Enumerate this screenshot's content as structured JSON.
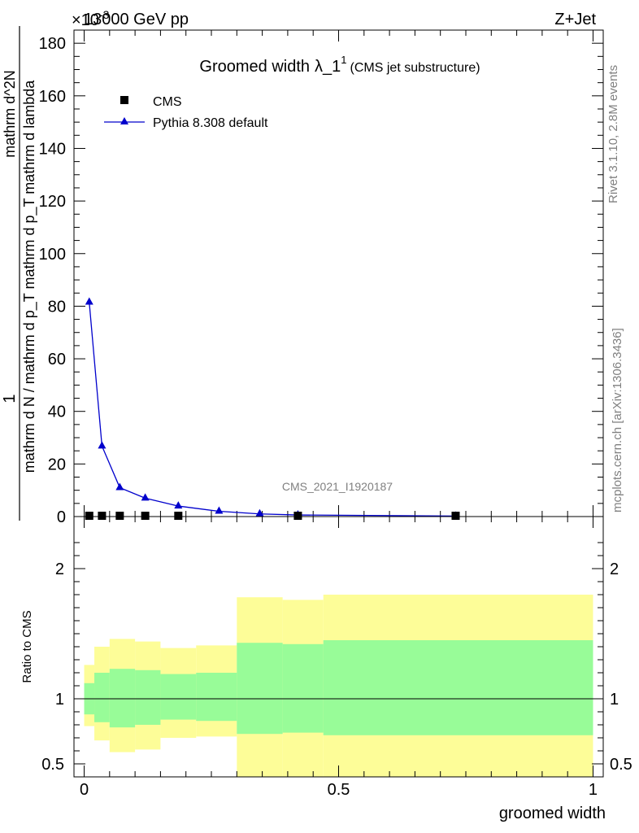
{
  "header": {
    "energy": "13000 GeV pp",
    "process": "Z+Jet",
    "exponent": "×10",
    "exponent_power": "-3"
  },
  "side_text": {
    "rivet": "Rivet 3.1.10,  2.8M events",
    "mcplots": "mcplots.cern.ch [arXiv:1306.3436]"
  },
  "watermark": "CMS_2021_I1920187",
  "chart_data": [
    {
      "type": "line",
      "title": "Groomed width",
      "title_symbol": "λ_1",
      "title_superscript": "1",
      "title_note": "(CMS jet substructure)",
      "ylabel_numerator": "1",
      "ylabel_denominator": "mathrm d N / mathrm d p_T mathrm d p_T mathrm d lambda",
      "ylabel_rotated": "mathrm d^2N",
      "xlim": [
        -0.02,
        1.02
      ],
      "ylim": [
        0,
        185
      ],
      "yticks": [
        "0",
        "20",
        "40",
        "60",
        "80",
        "100",
        "120",
        "140",
        "160",
        "180"
      ],
      "legend_position": "top-left",
      "series": [
        {
          "name": "CMS",
          "marker": "square",
          "color": "#000000",
          "points": [
            {
              "x": 0.01,
              "y": 0.3
            },
            {
              "x": 0.035,
              "y": 0.3
            },
            {
              "x": 0.07,
              "y": 0.3
            },
            {
              "x": 0.12,
              "y": 0.3
            },
            {
              "x": 0.185,
              "y": 0.3
            },
            {
              "x": 0.42,
              "y": 0.3
            },
            {
              "x": 0.73,
              "y": 0.3
            }
          ]
        },
        {
          "name": "Pythia 8.308 default",
          "marker": "triangle",
          "color": "#0000cc",
          "points": [
            {
              "x": 0.01,
              "y": 81.5
            },
            {
              "x": 0.035,
              "y": 26.8
            },
            {
              "x": 0.07,
              "y": 11.0
            },
            {
              "x": 0.12,
              "y": 7.0
            },
            {
              "x": 0.185,
              "y": 4.0
            },
            {
              "x": 0.265,
              "y": 2.0
            },
            {
              "x": 0.345,
              "y": 1.0
            },
            {
              "x": 0.42,
              "y": 0.6
            },
            {
              "x": 0.73,
              "y": 0.2
            }
          ]
        }
      ]
    },
    {
      "type": "area",
      "ylabel": "Ratio to CMS",
      "xlabel": "groomed width",
      "xlim": [
        -0.02,
        1.02
      ],
      "ylim": [
        0.4,
        2.4
      ],
      "xticks": [
        "0",
        "0.5",
        "1"
      ],
      "yticks": [
        "0.5",
        "1",
        "2"
      ],
      "reference_line": 1,
      "bins": [
        0,
        0.02,
        0.05,
        0.1,
        0.15,
        0.22,
        0.3,
        0.39,
        0.47,
        1.0
      ],
      "green_band": {
        "low": [
          0.88,
          0.82,
          0.78,
          0.8,
          0.84,
          0.83,
          0.73,
          0.74,
          0.72
        ],
        "high": [
          1.12,
          1.2,
          1.23,
          1.22,
          1.19,
          1.2,
          1.43,
          1.42,
          1.45
        ]
      },
      "yellow_band": {
        "low": [
          0.79,
          0.68,
          0.59,
          0.61,
          0.7,
          0.71,
          0.34,
          0.34,
          0.34
        ],
        "high": [
          1.26,
          1.4,
          1.46,
          1.44,
          1.39,
          1.41,
          1.78,
          1.76,
          1.8
        ]
      },
      "colors": {
        "green": "#98fc98",
        "yellow": "#fdfd98"
      }
    }
  ]
}
